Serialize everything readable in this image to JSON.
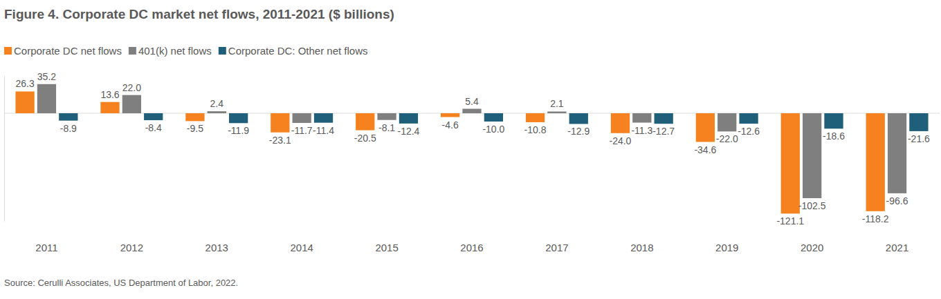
{
  "chart_data": {
    "type": "bar",
    "title": "Figure 4. Corporate DC market net flows, 2011-2021 ($ billions)",
    "source": "Source: Cerulli Associates, US Department of Labor, 2022.",
    "categories": [
      "2011",
      "2012",
      "2013",
      "2014",
      "2015",
      "2016",
      "2017",
      "2018",
      "2019",
      "2020",
      "2021"
    ],
    "series": [
      {
        "name": "Corporate DC net flows",
        "color": "#f5821f",
        "values": [
          26.3,
          13.6,
          -9.5,
          -23.1,
          -20.5,
          -4.6,
          -10.8,
          -24.0,
          -34.6,
          -121.1,
          -118.2
        ],
        "value_labels": [
          "26.3",
          "13.6",
          "-9.5",
          "-23.1",
          "-20.5",
          "-4.6",
          "-10.8",
          "-24.0",
          "-34.6",
          "-121.1",
          "-118.2"
        ]
      },
      {
        "name": "401(k) net flows",
        "color": "#7f7f7f",
        "values": [
          35.2,
          22.0,
          2.4,
          -11.7,
          -8.1,
          5.4,
          2.1,
          -11.3,
          -22.0,
          -102.5,
          -96.6
        ],
        "value_labels": [
          "35.2",
          "22.0",
          "2.4",
          "-11.7",
          "-8.1",
          "5.4",
          "2.1",
          "-11.3",
          "-22.0",
          "-102.5",
          "-96.6"
        ]
      },
      {
        "name": "Corporate DC: Other net flows",
        "color": "#1f5f7a",
        "values": [
          -8.9,
          -8.4,
          -11.9,
          -11.4,
          -12.4,
          -10.0,
          -12.9,
          -12.7,
          -12.6,
          -18.6,
          -21.6
        ],
        "value_labels": [
          "-8.9",
          "-8.4",
          "-11.9",
          "-11.4",
          "-12.4",
          "-10.0",
          "-12.9",
          "-12.7",
          "-12.6",
          "-18.6",
          "-21.6"
        ]
      }
    ],
    "ylim": [
      -130,
      45
    ],
    "tick_labels": "x",
    "data_labels": true,
    "legend": "top-left",
    "grid": false
  }
}
